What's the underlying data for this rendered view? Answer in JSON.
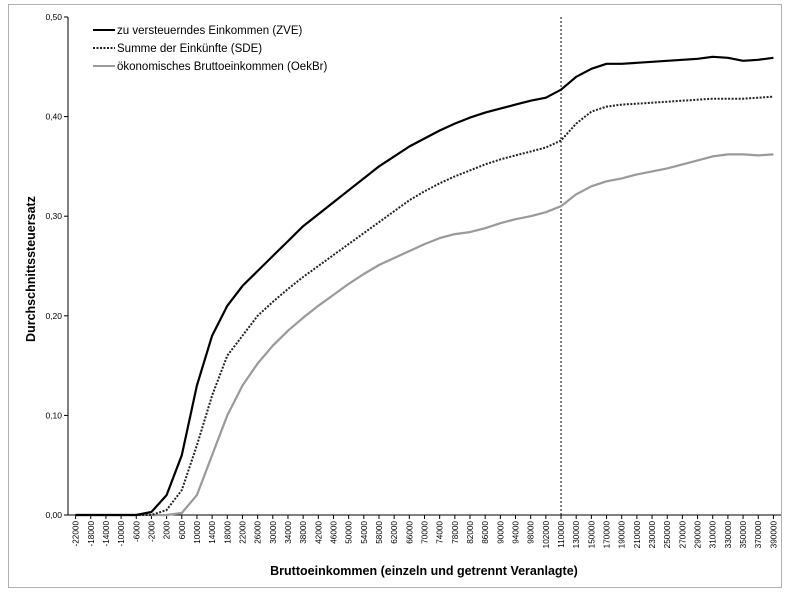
{
  "chart_data": {
    "type": "line",
    "title": "",
    "xlabel": "Bruttoeinkommen (einzeln und getrennt Veranlagte)",
    "ylabel": "Durchschnittssteuersatz",
    "ylim": [
      0,
      0.5
    ],
    "y_ticks": [
      {
        "value": 0.0,
        "label": "0,00"
      },
      {
        "value": 0.1,
        "label": "0,10"
      },
      {
        "value": 0.2,
        "label": "0,20"
      },
      {
        "value": 0.3,
        "label": "0,30"
      },
      {
        "value": 0.4,
        "label": "0,40"
      },
      {
        "value": 0.5,
        "label": "0,50"
      }
    ],
    "x_ticks": [
      "-22000",
      "-18000",
      "-14000",
      "-10000",
      "-6000",
      "-2000",
      "2000",
      "6000",
      "10000",
      "14000",
      "18000",
      "22000",
      "26000",
      "30000",
      "34000",
      "38000",
      "42000",
      "46000",
      "50000",
      "54000",
      "58000",
      "62000",
      "66000",
      "70000",
      "74000",
      "78000",
      "82000",
      "86000",
      "90000",
      "94000",
      "98000",
      "102000",
      "110000",
      "130000",
      "150000",
      "170000",
      "190000",
      "210000",
      "230000",
      "250000",
      "270000",
      "290000",
      "310000",
      "330000",
      "350000",
      "370000",
      "390000"
    ],
    "reference_line": {
      "x_tick": "110000",
      "style": "dotted"
    },
    "legend_position": "top-left",
    "grid": false,
    "series": [
      {
        "name": "zu versteuerndes Einkommen (ZVE)",
        "color": "#000000",
        "dash": "solid",
        "values": [
          0,
          0,
          0,
          0,
          0,
          0.003,
          0.02,
          0.06,
          0.13,
          0.18,
          0.21,
          0.23,
          0.245,
          0.26,
          0.275,
          0.29,
          0.302,
          0.314,
          0.326,
          0.338,
          0.35,
          0.36,
          0.37,
          0.378,
          0.386,
          0.393,
          0.399,
          0.404,
          0.408,
          0.412,
          0.416,
          0.419,
          0.427,
          0.44,
          0.448,
          0.453,
          0.453,
          0.454,
          0.455,
          0.456,
          0.457,
          0.458,
          0.46,
          0.459,
          0.456,
          0.457,
          0.459
        ]
      },
      {
        "name": "Summe der Einkünfte (SDE)",
        "color": "#222222",
        "dash": "dotted",
        "values": [
          0,
          0,
          0,
          0,
          0,
          0,
          0.005,
          0.025,
          0.07,
          0.12,
          0.16,
          0.18,
          0.2,
          0.214,
          0.227,
          0.239,
          0.25,
          0.261,
          0.272,
          0.283,
          0.294,
          0.305,
          0.316,
          0.325,
          0.333,
          0.34,
          0.346,
          0.352,
          0.357,
          0.361,
          0.365,
          0.369,
          0.376,
          0.393,
          0.405,
          0.41,
          0.412,
          0.413,
          0.414,
          0.415,
          0.416,
          0.417,
          0.418,
          0.418,
          0.418,
          0.419,
          0.42
        ]
      },
      {
        "name": "ökonomisches Bruttoeinkommen (OekBr)",
        "color": "#9a9a9a",
        "dash": "solid",
        "values": [
          0,
          0,
          0,
          0,
          0,
          0,
          0,
          0.002,
          0.02,
          0.06,
          0.1,
          0.13,
          0.152,
          0.17,
          0.185,
          0.198,
          0.21,
          0.221,
          0.232,
          0.242,
          0.251,
          0.258,
          0.265,
          0.272,
          0.278,
          0.282,
          0.284,
          0.288,
          0.293,
          0.297,
          0.3,
          0.304,
          0.31,
          0.322,
          0.33,
          0.335,
          0.338,
          0.342,
          0.345,
          0.348,
          0.352,
          0.356,
          0.36,
          0.362,
          0.362,
          0.361,
          0.362
        ]
      }
    ]
  }
}
